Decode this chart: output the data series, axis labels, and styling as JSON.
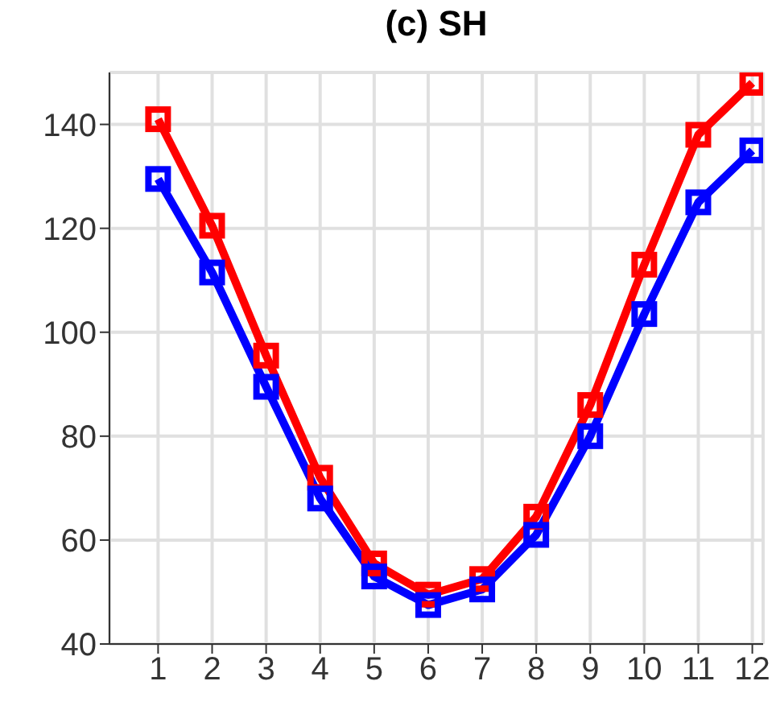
{
  "chart_data": {
    "type": "line",
    "title": "(c) SH",
    "x": [
      1,
      2,
      3,
      4,
      5,
      6,
      7,
      8,
      9,
      10,
      11,
      12
    ],
    "series": [
      {
        "color": "#ff0000",
        "values": [
          141,
          120.5,
          95.5,
          72,
          55.5,
          49.5,
          52.5,
          64.5,
          86,
          113,
          138,
          148
        ]
      },
      {
        "color": "#0000ff",
        "values": [
          129.5,
          111.5,
          89.5,
          68,
          53,
          47.5,
          50.5,
          61,
          80,
          103.5,
          125,
          135
        ]
      }
    ],
    "xlim": [
      0.1,
      12.2
    ],
    "xticks": [
      1,
      2,
      3,
      4,
      5,
      6,
      7,
      8,
      9,
      10,
      11,
      12
    ],
    "ylim": [
      40,
      150
    ],
    "yticks": [
      40,
      60,
      80,
      100,
      120,
      140
    ],
    "grid": true,
    "marker": "square",
    "line_style": "solid"
  }
}
